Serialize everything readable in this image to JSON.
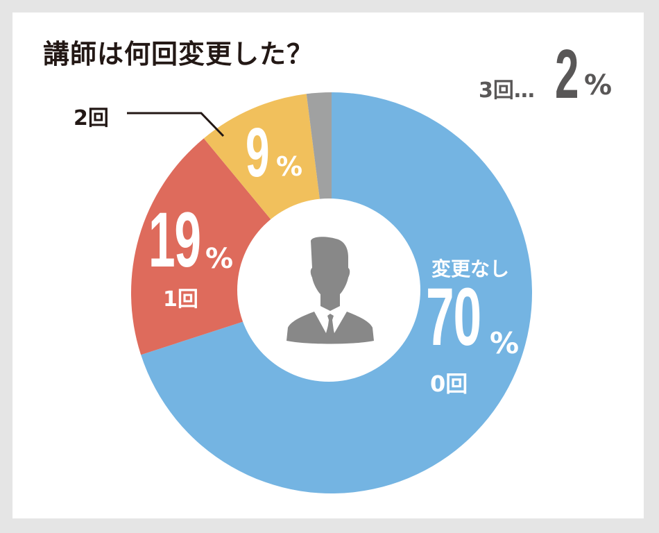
{
  "title": "講師は何回変更した？",
  "colors": {
    "zero": "#74b4e2",
    "one": "#de6b5c",
    "two": "#f1c05c",
    "three": "#a0a1a1",
    "title": "#231815",
    "icon": "#888888",
    "frame": "#e5e5e5"
  },
  "labels": {
    "zero": {
      "caption": "変更なし",
      "value": "70",
      "unit": "%",
      "sub": "0回"
    },
    "one": {
      "value": "19",
      "unit": "%",
      "sub": "1回"
    },
    "two": {
      "value": "9",
      "unit": "%",
      "callout": "2回"
    },
    "three": {
      "prefix": "3回…",
      "value": "2",
      "unit": "%"
    }
  },
  "center_icon": "businessman-avatar-icon",
  "chart_data": {
    "type": "pie",
    "subtype": "donut",
    "title": "講師は何回変更した？",
    "categories": [
      "0回 (変更なし)",
      "1回",
      "2回",
      "3回"
    ],
    "values": [
      70,
      19,
      9,
      2
    ],
    "unit": "%",
    "colors": [
      "#74b4e2",
      "#de6b5c",
      "#f1c05c",
      "#a0a1a1"
    ],
    "start_angle": "12 o'clock, clockwise",
    "legend": "none (direct labels)"
  }
}
